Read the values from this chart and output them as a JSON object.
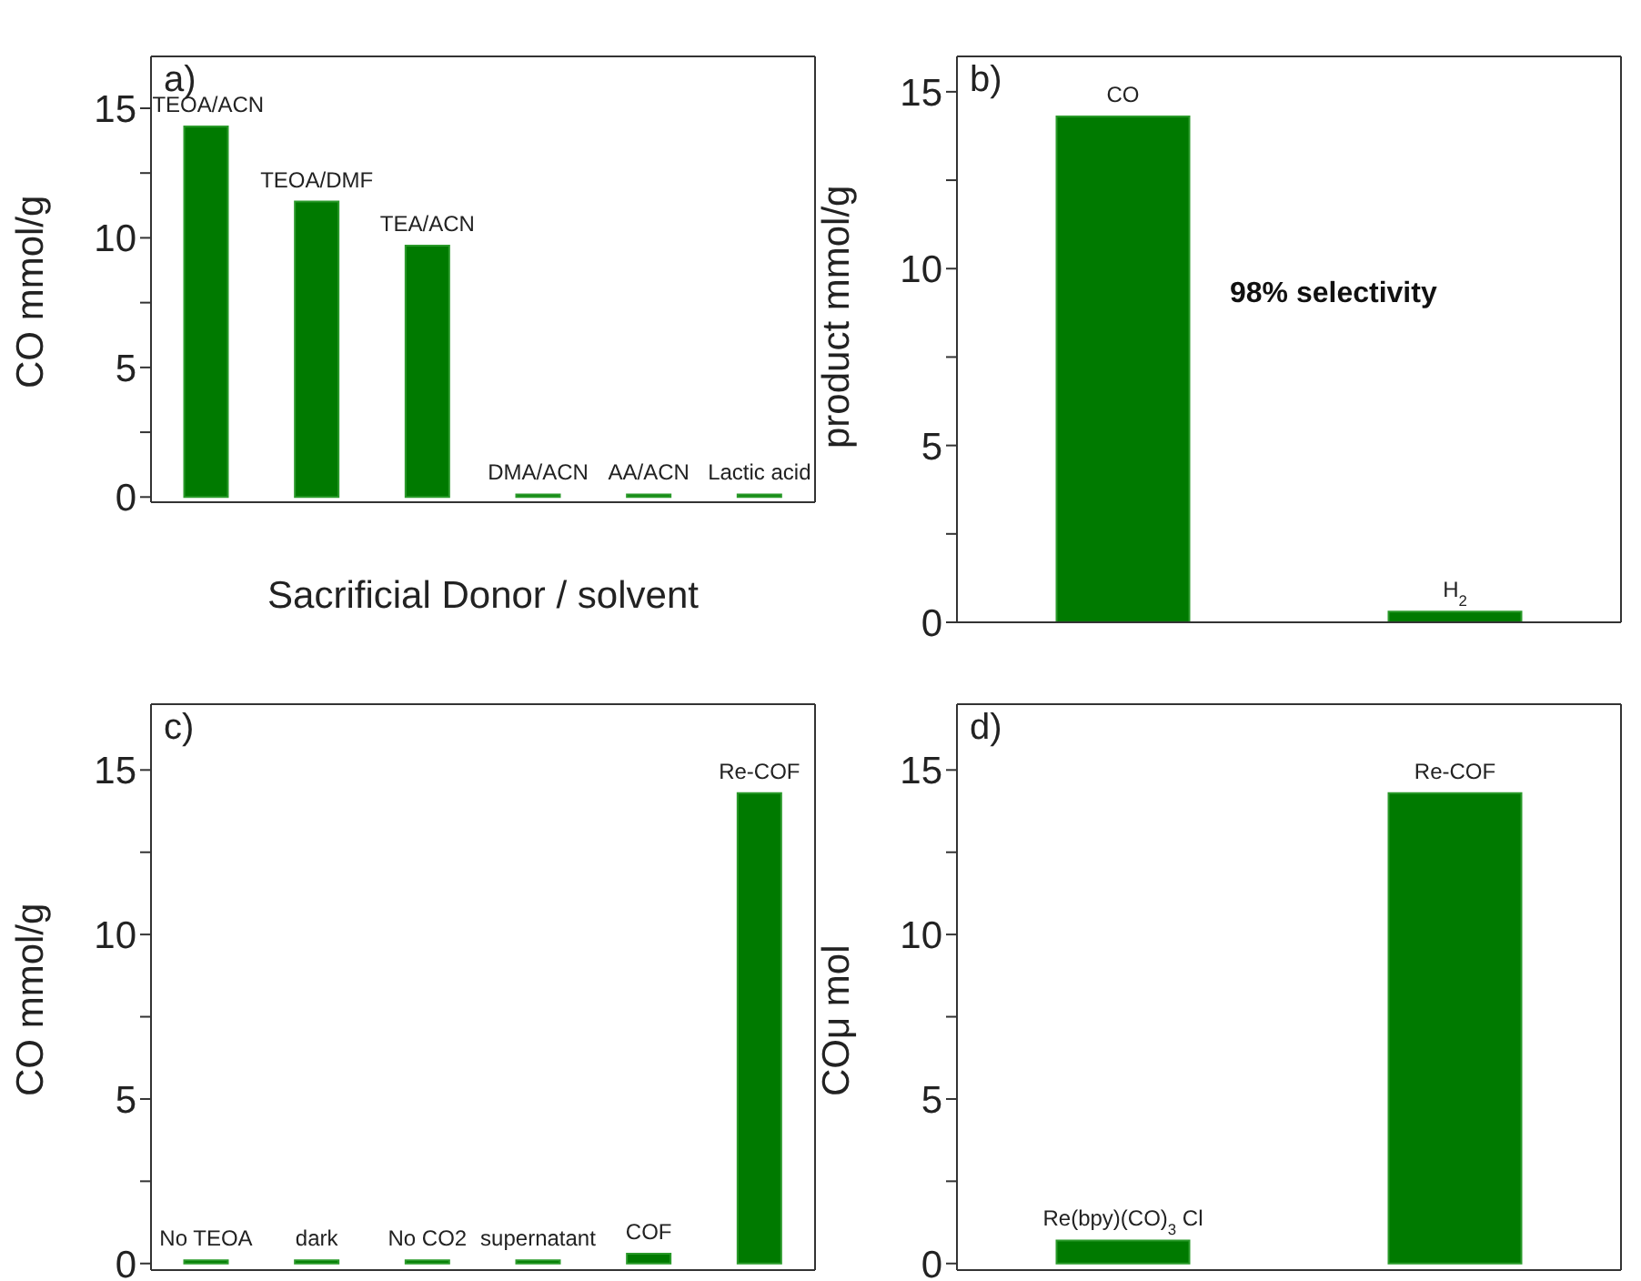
{
  "chart_data": [
    {
      "type": "bar",
      "title": "a)",
      "xlabel": "Sacrificial Donor / solvent",
      "ylabel": "CO mmol/g",
      "categories": [
        "TEOA/ACN",
        "TEOA/DMF",
        "TEA/ACN",
        "DMA/ACN",
        "AA/ACN",
        "Lactic acid"
      ],
      "values": [
        14.3,
        11.4,
        9.7,
        0.1,
        0.1,
        0.1
      ],
      "color": "#007a00",
      "ylim": [
        -0.2,
        17
      ],
      "yticks": [
        0,
        {
          "value": 2.5,
          "label": null
        },
        5,
        {
          "value": 7.5,
          "label": null
        },
        10,
        {
          "value": 12.5,
          "label": null
        },
        15
      ],
      "tick_labels": "y"
    },
    {
      "type": "bar",
      "title": "b)",
      "ylabel": "product mmol/g",
      "categories": [
        "CO",
        "H$_{2}$"
      ],
      "values": [
        14.3,
        0.3
      ],
      "color": "#007a00",
      "ylim": [
        0,
        16
      ],
      "yticks": [
        0,
        {
          "value": 2.5,
          "label": null
        },
        5,
        {
          "value": 7.5,
          "label": null
        },
        10,
        {
          "value": 12.5,
          "label": null
        },
        15
      ],
      "tick_labels": "y",
      "annotations": [
        "98% selectivity"
      ]
    },
    {
      "type": "bar",
      "title": "c)",
      "ylabel": "CO mmol/g",
      "categories": [
        "No TEOA",
        "dark",
        "No CO2",
        "supernatant",
        "COF",
        "Re-COF"
      ],
      "values": [
        0.1,
        0.1,
        0.1,
        0.1,
        0.3,
        14.3
      ],
      "color": "#007a00",
      "ylim": [
        -0.2,
        17
      ],
      "yticks": [
        0,
        {
          "value": 2.5,
          "label": null
        },
        5,
        {
          "value": 7.5,
          "label": null
        },
        10,
        {
          "value": 12.5,
          "label": null
        },
        15
      ],
      "tick_labels": "y"
    },
    {
      "type": "bar",
      "title": "d)",
      "ylabel": "COμ mol",
      "categories": [
        "Re(bpy)(CO)$_{3}$Cl",
        "Re-COF"
      ],
      "values": [
        0.7,
        14.3
      ],
      "color": "#007a00",
      "ylim": [
        -0.2,
        17
      ],
      "yticks": [
        0,
        {
          "value": 2.5,
          "label": null
        },
        5,
        {
          "value": 7.5,
          "label": null
        },
        10,
        {
          "value": 12.5,
          "label": null
        },
        15
      ],
      "tick_labels": "y"
    }
  ]
}
